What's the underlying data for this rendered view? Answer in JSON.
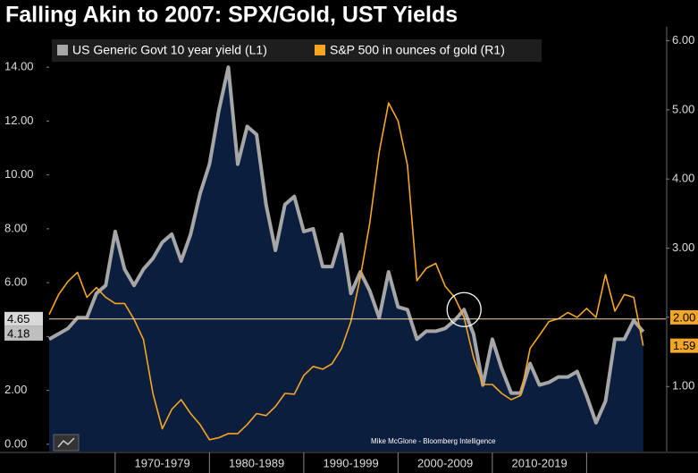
{
  "chart_data": {
    "type": "line",
    "title": "Falling Akin to 2007: SPX/Gold, UST Yields",
    "x": [
      1963,
      1964,
      1965,
      1966,
      1967,
      1968,
      1969,
      1970,
      1971,
      1972,
      1973,
      1974,
      1975,
      1976,
      1977,
      1978,
      1979,
      1980,
      1981,
      1982,
      1983,
      1984,
      1985,
      1986,
      1987,
      1988,
      1989,
      1990,
      1991,
      1992,
      1993,
      1994,
      1995,
      1996,
      1997,
      1998,
      1999,
      2000,
      2001,
      2002,
      2003,
      2004,
      2005,
      2006,
      2007,
      2008,
      2009,
      2010,
      2011,
      2012,
      2013,
      2014,
      2015,
      2016,
      2017,
      2018,
      2019,
      2020,
      2021,
      2022,
      2023,
      2024,
      2025,
      2026
    ],
    "xlim": [
      1963,
      2028.4
    ],
    "xticks": [
      {
        "value": 1975,
        "label": "1970-1979"
      },
      {
        "value": 1985,
        "label": "1980-1989"
      },
      {
        "value": 1995,
        "label": "1990-1999"
      },
      {
        "value": 2005,
        "label": "2000-2009"
      },
      {
        "value": 2015,
        "label": "2010-2019"
      }
    ],
    "series": [
      {
        "name": "US Generic Govt 10 year yield (L1)",
        "color": "#a6a6a6",
        "axis": "y",
        "last_label": "4.18",
        "values": [
          3.9,
          4.1,
          4.3,
          4.7,
          4.7,
          5.6,
          5.9,
          7.9,
          6.5,
          5.9,
          6.5,
          6.9,
          7.5,
          7.8,
          6.8,
          7.8,
          9.3,
          10.4,
          12.4,
          14.0,
          10.4,
          11.8,
          11.5,
          8.9,
          7.2,
          8.9,
          9.2,
          7.9,
          8.0,
          6.6,
          6.6,
          7.8,
          5.6,
          6.4,
          5.7,
          4.7,
          6.4,
          5.1,
          5.0,
          3.9,
          4.2,
          4.2,
          4.3,
          4.6,
          5.0,
          4.1,
          2.2,
          3.9,
          2.8,
          1.9,
          1.9,
          3.0,
          2.2,
          2.3,
          2.5,
          2.5,
          2.7,
          1.8,
          0.8,
          1.6,
          3.9,
          3.9,
          4.6,
          4.18
        ]
      },
      {
        "name": "S&P 500 in ounces of gold (R1)",
        "color": "#f5a623",
        "axis": "y2",
        "last_label": "1.59",
        "values": [
          2.04,
          2.33,
          2.52,
          2.65,
          2.29,
          2.43,
          2.29,
          2.2,
          2.2,
          1.97,
          1.68,
          0.9,
          0.39,
          0.67,
          0.81,
          0.61,
          0.45,
          0.23,
          0.26,
          0.32,
          0.32,
          0.45,
          0.61,
          0.58,
          0.71,
          0.9,
          0.89,
          1.16,
          1.29,
          1.25,
          1.33,
          1.55,
          1.94,
          2.58,
          3.36,
          4.39,
          5.1,
          4.84,
          4.2,
          2.53,
          2.71,
          2.78,
          2.45,
          2.29,
          2.0,
          1.42,
          1.03,
          1.03,
          0.9,
          0.81,
          0.87,
          1.55,
          1.74,
          1.94,
          1.98,
          2.07,
          2.0,
          2.13,
          2.0,
          2.62,
          2.09,
          2.33,
          2.29,
          1.59
        ]
      }
    ],
    "ylim": [
      -0.27,
      15.5
    ],
    "yticks": [
      {
        "value": 0,
        "label": "0.00"
      },
      {
        "value": 2,
        "label": "2.00"
      },
      {
        "value": 4,
        "label": "4.00"
      },
      {
        "value": 6,
        "label": "6.00"
      },
      {
        "value": 8,
        "label": "8.00"
      },
      {
        "value": 10,
        "label": "10.00"
      },
      {
        "value": 12,
        "label": "12.00"
      },
      {
        "value": 14,
        "label": "14.00"
      }
    ],
    "y2lim": [
      0.06,
      6.2
    ],
    "y2ticks": [
      {
        "value": 1,
        "label": "1.00"
      },
      {
        "value": 2,
        "label": "2.00"
      },
      {
        "value": 3,
        "label": "3.00"
      },
      {
        "value": 4,
        "label": "4.00"
      },
      {
        "value": 5,
        "label": "5.00"
      },
      {
        "value": 6,
        "label": "6.00"
      }
    ],
    "reference_line": {
      "value": 4.65,
      "label": "4.65",
      "y2_label": "2.00",
      "y2_value": 2
    },
    "highlight_x": 2007,
    "source": "Mike McGlone - Bloomberg Intelligence",
    "grid": false
  }
}
